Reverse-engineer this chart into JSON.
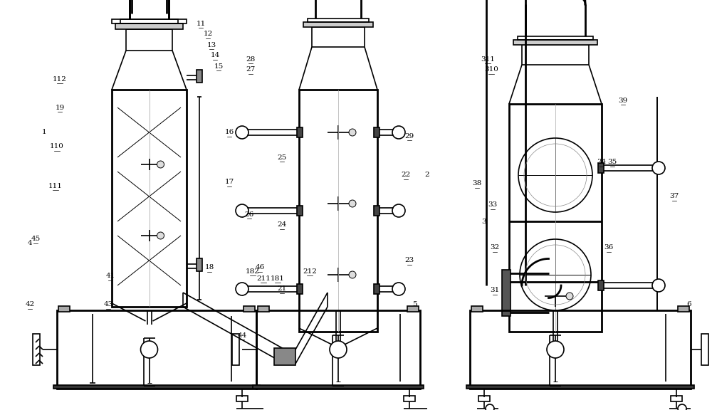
{
  "bg_color": "#ffffff",
  "lw": 1.2,
  "tlw": 0.7,
  "thw": 2.0,
  "fig_width": 10.0,
  "fig_height": 5.76
}
